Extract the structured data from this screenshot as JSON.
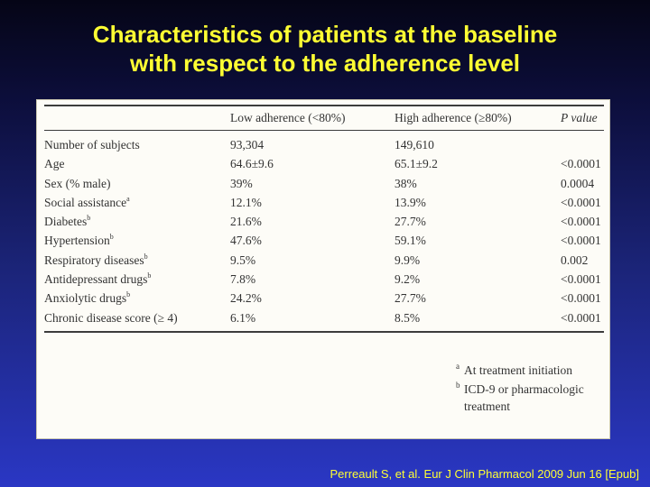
{
  "title": {
    "line1": "Characteristics of patients at the baseline",
    "line2": "with respect to the adherence level"
  },
  "table": {
    "headers": [
      "",
      "Low adherence (<80%)",
      "High adherence (≥80%)",
      "P value"
    ],
    "rows": [
      {
        "label": "Number of subjects",
        "sup": "",
        "low": "93,304",
        "high": "149,610",
        "p": ""
      },
      {
        "label": "Age",
        "sup": "",
        "low": "64.6±9.6",
        "high": "65.1±9.2",
        "p": "<0.0001"
      },
      {
        "label": "Sex (% male)",
        "sup": "",
        "low": "39%",
        "high": "38%",
        "p": "0.0004"
      },
      {
        "label": "Social assistance",
        "sup": "a",
        "low": "12.1%",
        "high": "13.9%",
        "p": "<0.0001"
      },
      {
        "label": "Diabetes",
        "sup": "b",
        "low": "21.6%",
        "high": "27.7%",
        "p": "<0.0001"
      },
      {
        "label": "Hypertension",
        "sup": "b",
        "low": "47.6%",
        "high": "59.1%",
        "p": "<0.0001"
      },
      {
        "label": "Respiratory diseases",
        "sup": "b",
        "low": "9.5%",
        "high": "9.9%",
        "p": "0.002"
      },
      {
        "label": "Antidepressant drugs",
        "sup": "b",
        "low": "7.8%",
        "high": "9.2%",
        "p": "<0.0001"
      },
      {
        "label": "Anxiolytic drugs",
        "sup": "b",
        "low": "24.2%",
        "high": "27.7%",
        "p": "<0.0001"
      },
      {
        "label": "Chronic disease score (≥ 4)",
        "sup": "",
        "low": "6.1%",
        "high": "8.5%",
        "p": "<0.0001"
      }
    ]
  },
  "footnotes": [
    {
      "mark": "a",
      "text": "At treatment initiation"
    },
    {
      "mark": "b",
      "text": "ICD-9 or pharmacologic treatment"
    }
  ],
  "citation": "Perreault S, et al. Eur J Clin Pharmacol 2009 Jun 16 [Epub]",
  "colors": {
    "title": "#ffff33",
    "citation": "#ffff33",
    "panel": "#fdfcf7"
  }
}
